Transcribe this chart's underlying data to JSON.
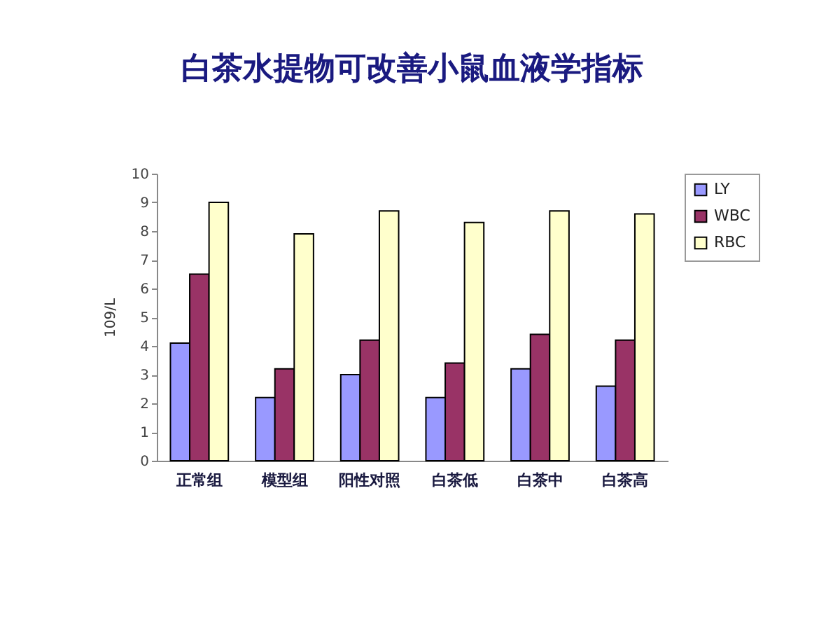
{
  "chart_data": {
    "type": "bar",
    "title": "白茶水提物可改善小鼠血液学指标",
    "ylabel": "109/L",
    "categories": [
      "正常组",
      "模型组",
      "阳性对照",
      "白茶低",
      "白茶中",
      "白茶高"
    ],
    "series": [
      {
        "name": "LY",
        "color": "#9999ff",
        "values": [
          4.1,
          2.2,
          3.0,
          2.2,
          3.2,
          2.6
        ]
      },
      {
        "name": "WBC",
        "color": "#993366",
        "values": [
          6.5,
          3.2,
          4.2,
          3.4,
          4.4,
          4.2
        ]
      },
      {
        "name": "RBC",
        "color": "#ffffcc",
        "values": [
          9.0,
          7.9,
          8.7,
          8.3,
          8.7,
          8.6
        ]
      }
    ],
    "ylim": [
      0,
      10
    ],
    "yticks": [
      0,
      1,
      2,
      3,
      4,
      5,
      6,
      7,
      8,
      9,
      10
    ],
    "grid": false,
    "legend": "right"
  }
}
